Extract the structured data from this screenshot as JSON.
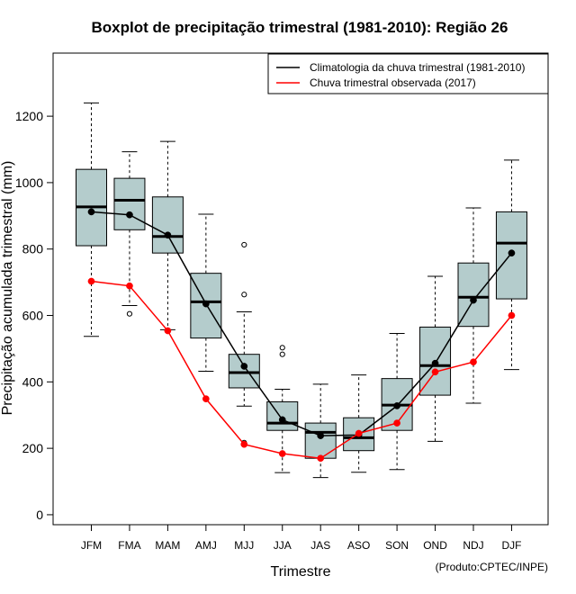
{
  "chart_data": {
    "type": "boxplot",
    "title": "Boxplot de precipitação trimestral (1981-2010): Região 26",
    "xlabel": "Trimestre",
    "ylabel": "Precipitação acumulada trimestral (mm)",
    "credit": "(Produto:CPTEC/INPE)",
    "ylim": [
      -30,
      1390
    ],
    "yticks": [
      0,
      200,
      400,
      600,
      800,
      1000,
      1200
    ],
    "categories": [
      "JFM",
      "FMA",
      "MAM",
      "AMJ",
      "MJJ",
      "JJA",
      "JAS",
      "ASO",
      "SON",
      "OND",
      "NDJ",
      "DJF"
    ],
    "boxes": [
      {
        "min": 537,
        "q1": 810,
        "median": 927,
        "q3": 1040,
        "max": 1240,
        "outliers": []
      },
      {
        "min": 630,
        "q1": 858,
        "median": 947,
        "q3": 1013,
        "max": 1093,
        "outliers": [
          605
        ]
      },
      {
        "min": 557,
        "q1": 788,
        "median": 838,
        "q3": 957,
        "max": 1124,
        "outliers": []
      },
      {
        "min": 432,
        "q1": 532,
        "median": 641,
        "q3": 727,
        "max": 905,
        "outliers": []
      },
      {
        "min": 327,
        "q1": 382,
        "median": 428,
        "q3": 483,
        "max": 611,
        "outliers": [
          813,
          663,
          217
        ]
      },
      {
        "min": 127,
        "q1": 254,
        "median": 276,
        "q3": 340,
        "max": 378,
        "outliers": [
          503,
          483
        ]
      },
      {
        "min": 112,
        "q1": 170,
        "median": 248,
        "q3": 276,
        "max": 393,
        "outliers": []
      },
      {
        "min": 128,
        "q1": 193,
        "median": 232,
        "q3": 292,
        "max": 421,
        "outliers": []
      },
      {
        "min": 136,
        "q1": 254,
        "median": 330,
        "q3": 410,
        "max": 546,
        "outliers": []
      },
      {
        "min": 221,
        "q1": 360,
        "median": 449,
        "q3": 565,
        "max": 718,
        "outliers": []
      },
      {
        "min": 336,
        "q1": 567,
        "median": 655,
        "q3": 758,
        "max": 924,
        "outliers": []
      },
      {
        "min": 437,
        "q1": 650,
        "median": 818,
        "q3": 912,
        "max": 1068,
        "outliers": []
      }
    ],
    "series": [
      {
        "name": "Climatologia da chuva trimestral (1981-2010)",
        "color": "#000000",
        "values": [
          912,
          903,
          842,
          635,
          447,
          286,
          238,
          240,
          328,
          456,
          646,
          788
        ]
      },
      {
        "name": "Chuva trimestral observada (2017)",
        "color": "#ff0000",
        "values": [
          703,
          689,
          554,
          349,
          212,
          184,
          170,
          245,
          276,
          430,
          460,
          600
        ]
      }
    ],
    "legend_position": "top-right",
    "box_fill": "#b4cccc"
  }
}
